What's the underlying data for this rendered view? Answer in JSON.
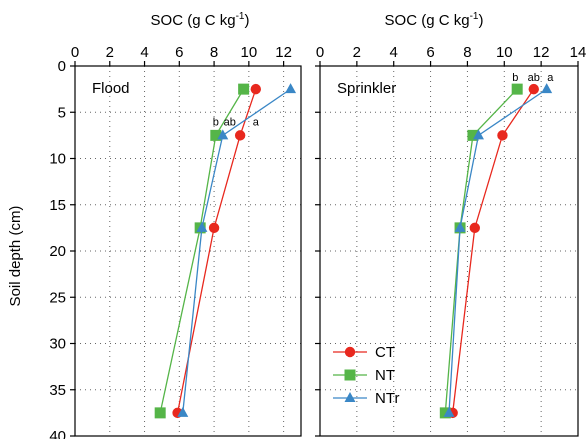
{
  "chart_data": [
    {
      "type": "line",
      "panel": "Flood",
      "panel_label": "Flood",
      "xlabel": "SOC (g C kg",
      "xlabel_sup": "-1",
      "xlabel_suffix": ")",
      "ylabel": "Soil depth (cm)",
      "xlim": [
        0,
        13
      ],
      "ylim": [
        40,
        0
      ],
      "x_ticks": [
        0,
        2,
        4,
        6,
        8,
        10,
        12
      ],
      "y_ticks": [
        0,
        5,
        10,
        15,
        20,
        25,
        30,
        35,
        40
      ],
      "grid": true,
      "depths": [
        2.5,
        7.5,
        17.5,
        37.5
      ],
      "series": [
        {
          "name": "CT",
          "color": "#e8281e",
          "marker": "circle",
          "values": [
            10.4,
            9.5,
            8.0,
            5.9
          ]
        },
        {
          "name": "NT",
          "color": "#55b548",
          "marker": "square",
          "values": [
            9.7,
            8.1,
            7.2,
            4.9
          ]
        },
        {
          "name": "NTr",
          "color": "#3a87c6",
          "marker": "triangle",
          "values": [
            12.4,
            8.5,
            7.3,
            6.2
          ]
        }
      ],
      "annotations": [
        {
          "text": "b",
          "x": 8.1,
          "y": 6.0
        },
        {
          "text": "ab",
          "x": 8.9,
          "y": 6.0
        },
        {
          "text": "a",
          "x": 10.4,
          "y": 6.0
        }
      ]
    },
    {
      "type": "line",
      "panel": "Sprinkler",
      "panel_label": "Sprinkler",
      "xlabel": "SOC (g C kg",
      "xlabel_sup": "-1",
      "xlabel_suffix": ")",
      "xlim": [
        0,
        14
      ],
      "ylim": [
        40,
        0
      ],
      "x_ticks": [
        0,
        2,
        4,
        6,
        8,
        10,
        12,
        14
      ],
      "y_ticks": [
        0,
        5,
        10,
        15,
        20,
        25,
        30,
        35,
        40
      ],
      "grid": true,
      "depths": [
        2.5,
        7.5,
        17.5,
        37.5
      ],
      "series": [
        {
          "name": "CT",
          "color": "#e8281e",
          "marker": "circle",
          "values": [
            11.6,
            9.9,
            8.4,
            7.2
          ]
        },
        {
          "name": "NT",
          "color": "#55b548",
          "marker": "square",
          "values": [
            10.7,
            8.3,
            7.6,
            6.8
          ]
        },
        {
          "name": "NTr",
          "color": "#3a87c6",
          "marker": "triangle",
          "values": [
            12.3,
            8.6,
            7.6,
            7.0
          ]
        }
      ],
      "annotations": [
        {
          "text": "b",
          "x": 10.6,
          "y": 1.2
        },
        {
          "text": "ab",
          "x": 11.6,
          "y": 1.2
        },
        {
          "text": "a",
          "x": 12.5,
          "y": 1.2
        }
      ]
    }
  ],
  "legend": {
    "placement": "lower-left of Sprinkler panel",
    "entries": [
      {
        "name": "CT",
        "color": "#e8281e",
        "marker": "circle"
      },
      {
        "name": "NT",
        "color": "#55b548",
        "marker": "square"
      },
      {
        "name": "NTr",
        "color": "#3a87c6",
        "marker": "triangle"
      }
    ]
  }
}
